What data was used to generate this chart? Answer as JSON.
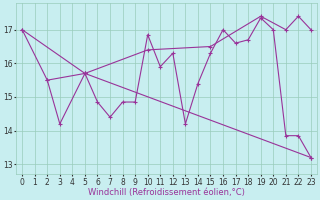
{
  "title": "",
  "xlabel": "Windchill (Refroidissement éolien,°C)",
  "bg_color": "#c8eef0",
  "line_color": "#993399",
  "grid_color": "#99ccbb",
  "x_ticks": [
    0,
    1,
    2,
    3,
    4,
    5,
    6,
    7,
    8,
    9,
    10,
    11,
    12,
    13,
    14,
    15,
    16,
    17,
    18,
    19,
    20,
    21,
    22,
    23
  ],
  "y_ticks": [
    13,
    14,
    15,
    16,
    17
  ],
  "xlim": [
    -0.5,
    23.5
  ],
  "ylim": [
    12.7,
    17.8
  ],
  "series1_x": [
    0,
    2,
    3,
    5,
    6,
    7,
    8,
    9,
    10,
    11,
    12,
    13,
    14,
    15,
    16,
    17,
    18,
    19,
    20,
    21,
    22,
    23
  ],
  "series1_y": [
    17.0,
    15.5,
    14.2,
    15.7,
    14.85,
    14.4,
    14.85,
    14.85,
    16.85,
    15.9,
    16.3,
    14.2,
    15.4,
    16.3,
    17.0,
    16.6,
    16.7,
    17.35,
    17.0,
    13.85,
    13.85,
    13.2
  ],
  "series2_x": [
    0,
    5,
    10,
    15,
    19,
    21,
    22,
    23
  ],
  "series2_y": [
    17.0,
    15.7,
    16.4,
    16.5,
    17.4,
    17.0,
    17.4,
    17.0
  ],
  "series3_x": [
    2,
    5,
    23
  ],
  "series3_y": [
    15.5,
    15.7,
    13.2
  ],
  "tick_fontsize": 5.5,
  "label_fontsize": 6.0,
  "lw": 0.8,
  "ms": 2.5
}
